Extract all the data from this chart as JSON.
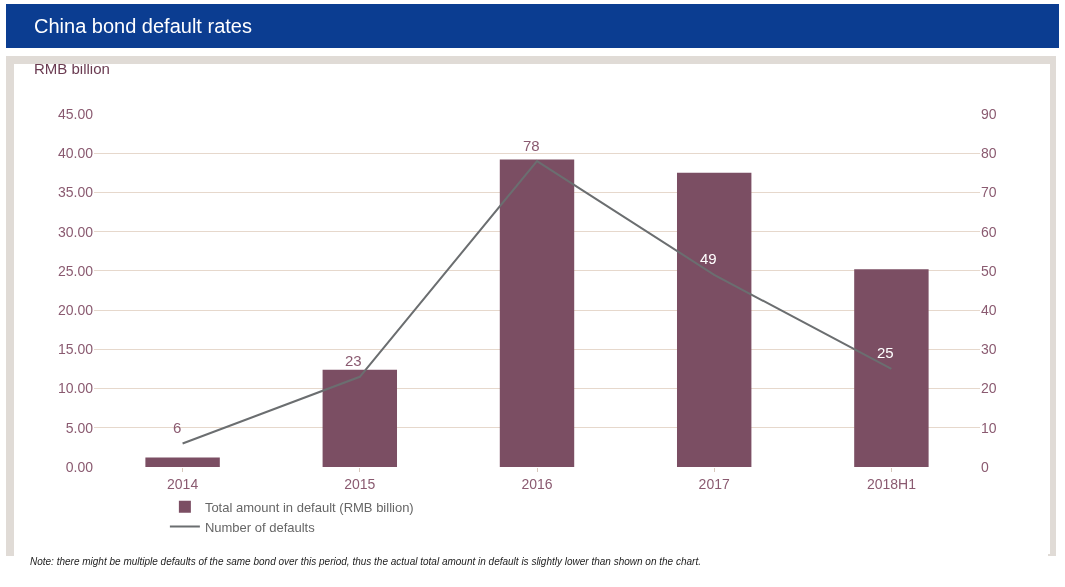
{
  "chart_data": {
    "type": "bar",
    "title": "China bond default rates",
    "ylabel": "RMB billion",
    "categories": [
      "2014",
      "2015",
      "2016",
      "2017",
      "2018H1"
    ],
    "series": [
      {
        "name": "Total amount in default (RMB billion)",
        "color": "#7b4e63",
        "values": [
          1.2,
          12.4,
          39.2,
          37.5,
          25.2
        ]
      },
      {
        "name": "Number of defaults",
        "type": "line",
        "axis": "y2",
        "color": "#6b6e70",
        "values": [
          6,
          23,
          78,
          49,
          25
        ],
        "value_labels": [
          "6",
          "23",
          "78",
          "49",
          "25"
        ]
      }
    ],
    "ylim": [
      0,
      45
    ],
    "yticks": [
      {
        "value": 0,
        "label": "0.00"
      },
      {
        "value": 5,
        "label": "5.00"
      },
      {
        "value": 10,
        "label": "10.00"
      },
      {
        "value": 15,
        "label": "15.00"
      },
      {
        "value": 20,
        "label": "20.00"
      },
      {
        "value": 25,
        "label": "25.00"
      },
      {
        "value": 30,
        "label": "30.00"
      },
      {
        "value": 35,
        "label": "35.00"
      },
      {
        "value": 40,
        "label": "40.00"
      },
      {
        "value": 45,
        "label": "45.00"
      }
    ],
    "y2lim": [
      0,
      90
    ],
    "y2ticks": [
      0,
      10,
      20,
      30,
      40,
      50,
      60,
      70,
      80,
      90
    ],
    "grid": "y",
    "legend": "bottom left",
    "marker": "none",
    "annotations": [
      "Note: there might be multiple defaults of the same bond over this period, thus the actual total amount in default is slightly lower than shown on the chart."
    ]
  }
}
